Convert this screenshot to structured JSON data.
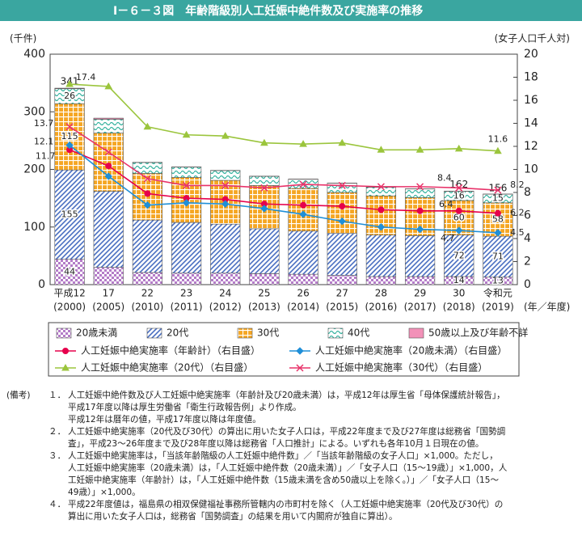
{
  "chart_data": {
    "type": "bar",
    "title": "Ⅰ－６－３図　年齢階級別人工妊娠中絶件数及び実施率の推移",
    "y_label": "(千件)",
    "y2_label": "(女子人口千人対)",
    "x_label": "(年／年度)",
    "categories": [
      "平成12",
      "17",
      "22",
      "23",
      "24",
      "25",
      "26",
      "27",
      "28",
      "29",
      "30",
      "令和元"
    ],
    "category_sublabels": [
      "(2000)",
      "(2005)",
      "(2010)",
      "(2011)",
      "(2012)",
      "(2013)",
      "(2014)",
      "(2015)",
      "(2016)",
      "(2017)",
      "(2018)",
      "(2019)"
    ],
    "ylim": [
      0,
      400
    ],
    "yticks": [
      0,
      100,
      200,
      300,
      400
    ],
    "y2lim": [
      0,
      20
    ],
    "y2ticks": [
      0,
      2,
      4,
      6,
      8,
      10,
      12,
      14,
      16,
      18,
      20
    ],
    "grid": false,
    "series": [
      {
        "name": "20歳未満",
        "type": "bar",
        "pattern": "checker",
        "color": "#b47cc8",
        "values": [
          44,
          30,
          21,
          20,
          20,
          19,
          18,
          16,
          14,
          14,
          14,
          13
        ],
        "value_labels": [
          "44",
          null,
          null,
          null,
          null,
          null,
          null,
          null,
          null,
          null,
          "14",
          "13"
        ]
      },
      {
        "name": "20代",
        "type": "bar",
        "pattern": "diagonal",
        "color": "#4a6fc1",
        "values": [
          155,
          132,
          91,
          88,
          85,
          78,
          75,
          73,
          72,
          71,
          72,
          71
        ],
        "value_labels": [
          "155",
          null,
          null,
          null,
          null,
          null,
          null,
          null,
          null,
          null,
          "72",
          "71"
        ]
      },
      {
        "name": "30代",
        "type": "bar",
        "pattern": "grid",
        "color": "#f5a623",
        "values": [
          115,
          101,
          81,
          78,
          76,
          75,
          74,
          71,
          68,
          66,
          60,
          58
        ],
        "value_labels": [
          "115",
          null,
          null,
          null,
          null,
          null,
          null,
          null,
          null,
          null,
          "60",
          "58"
        ]
      },
      {
        "name": "40代",
        "type": "bar",
        "pattern": "wave",
        "color": "#33b29e",
        "values": [
          26,
          24,
          19,
          18,
          17,
          16,
          16,
          16,
          15,
          15,
          16,
          15
        ],
        "value_labels": [
          "26",
          null,
          null,
          null,
          null,
          null,
          null,
          null,
          null,
          null,
          "16",
          "15"
        ]
      },
      {
        "name": "50歳以上及び年齢不詳",
        "type": "bar",
        "pattern": "solid",
        "color": "#f291b8",
        "values": [
          1,
          2,
          0.3,
          0.3,
          0.3,
          0.3,
          0.3,
          0.3,
          0.3,
          0.3,
          0.3,
          0.3
        ],
        "value_labels": [
          null,
          null,
          null,
          null,
          null,
          null,
          null,
          null,
          null,
          null,
          null,
          null
        ]
      },
      {
        "name": "人工妊娠中絶実施率（年齢計）（右目盛）",
        "type": "line",
        "marker": "circle",
        "axis": "y2",
        "color": "#e6004c",
        "values": [
          11.7,
          10.3,
          7.9,
          7.5,
          7.4,
          7.0,
          6.9,
          6.8,
          6.5,
          6.4,
          6.4,
          6.2
        ],
        "value_labels": [
          "11.7",
          null,
          null,
          null,
          null,
          null,
          null,
          null,
          null,
          null,
          "6.4",
          "6.2"
        ]
      },
      {
        "name": "人工妊娠中絶実施率（20歳未満）（右目盛）",
        "type": "line",
        "marker": "diamond",
        "axis": "y2",
        "color": "#1f8fd8",
        "values": [
          12.1,
          9.4,
          6.9,
          7.1,
          7.0,
          6.6,
          6.1,
          5.5,
          5.0,
          4.8,
          4.7,
          4.5
        ],
        "value_labels": [
          "12.1",
          null,
          null,
          null,
          null,
          null,
          null,
          null,
          null,
          null,
          "4.7",
          "4.5"
        ]
      },
      {
        "name": "人工妊娠中絶実施率（20代）（右目盛）",
        "type": "line",
        "marker": "triangle",
        "axis": "y2",
        "color": "#9bc53d",
        "values": [
          17.4,
          17.2,
          13.7,
          13.0,
          12.9,
          12.3,
          12.2,
          12.3,
          11.7,
          11.7,
          11.8,
          11.6
        ],
        "value_labels": [
          "17.4",
          null,
          null,
          null,
          null,
          null,
          null,
          null,
          null,
          null,
          null,
          "11.6"
        ]
      },
      {
        "name": "人工妊娠中絶実施率（30代）（右目盛）",
        "type": "line",
        "marker": "cross",
        "axis": "y2",
        "color": "#e8336a",
        "values": [
          13.7,
          11.5,
          9.2,
          8.6,
          8.6,
          8.4,
          8.7,
          8.6,
          8.5,
          8.5,
          8.4,
          8.2
        ],
        "value_labels": [
          "13.7",
          null,
          null,
          null,
          null,
          null,
          null,
          null,
          null,
          null,
          "8.4",
          "8.2"
        ]
      }
    ],
    "totals": [
      341,
      null,
      null,
      null,
      null,
      null,
      null,
      null,
      null,
      null,
      162,
      156
    ]
  },
  "notes": {
    "head": "(備考)",
    "items": [
      {
        "num": "１．",
        "lines": [
          "人工妊娠中絶件数及び人工妊娠中絶実施率（年齢計及び20歳未満）は，平成12年は厚生省「母体保護統計報告」，",
          "平成17年度以降は厚生労働省「衛生行政報告例」より作成。",
          "平成12年は暦年の値，平成17年度以降は年度値。"
        ]
      },
      {
        "num": "２．",
        "lines": [
          "人工妊娠中絶実施率（20代及び30代）の算出に用いた女子人口は，平成22年度まで及び27年度は総務省「国勢調",
          "査」，平成23～26年度まで及び28年度以降は総務省「人口推計」による。いずれも各年10月１日現在の値。"
        ]
      },
      {
        "num": "３．",
        "lines": [
          "人工妊娠中絶実施率は，「当該年齢階級の人工妊娠中絶件数」／「当該年齢階級の女子人口」×1,000。ただし，",
          "人工妊娠中絶実施率（20歳未満）は，「人工妊娠中絶件数（20歳未満）」／「女子人口（15～19歳）」×1,000，人",
          "工妊娠中絶実施率（年齢計）は，「人工妊娠中絶件数（15歳未満を含め50歳以上を除く。）」／「女子人口（15～",
          "49歳）」×1,000。"
        ]
      },
      {
        "num": "４．",
        "lines": [
          "平成22年度値は，福島県の相双保健福祉事務所管轄内の市町村を除く（人工妊娠中絶実施率（20代及び30代）の",
          "算出に用いた女子人口は，総務省「国勢調査」の結果を用いて内閣府が独自に算出）。"
        ]
      }
    ]
  }
}
